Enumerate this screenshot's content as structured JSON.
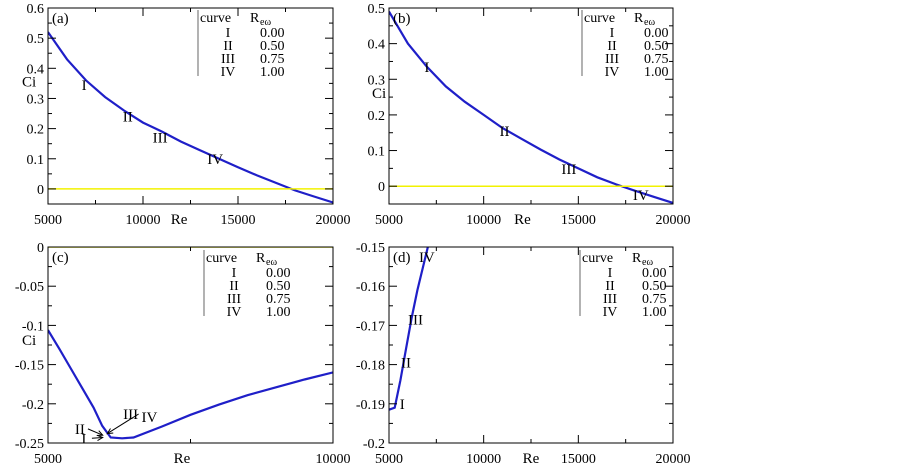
{
  "colors": {
    "curve": "#1f1fc8",
    "zero_line": "#f2f200",
    "frame": "#000000"
  },
  "chart_data": [
    {
      "type": "line",
      "panel": "(a)",
      "xlabel": "Re",
      "ylabel": "Ci",
      "xlim": [
        5000,
        20000
      ],
      "ylim": [
        -0.05,
        0.6
      ],
      "xticks": [
        5000,
        10000,
        15000,
        20000
      ],
      "yticks": [
        0,
        0.1,
        0.2,
        0.3,
        0.4,
        0.5,
        0.6
      ],
      "xtick_labels": [
        "5000",
        "10000",
        "15000",
        "20000"
      ],
      "ytick_labels": [
        "0",
        "0.1",
        "0.2",
        "0.3",
        "0.4",
        "0.5",
        "0.6"
      ],
      "series": [
        {
          "role": "curve",
          "x": [
            5000,
            6000,
            7000,
            8000,
            9000,
            10000,
            11000,
            12000,
            13000,
            14000,
            15000,
            16000,
            17000,
            18000,
            19000,
            20000
          ],
          "y": [
            0.52,
            0.43,
            0.36,
            0.305,
            0.26,
            0.22,
            0.19,
            0.157,
            0.128,
            0.1,
            0.072,
            0.045,
            0.02,
            -0.005,
            -0.025,
            -0.045
          ]
        },
        {
          "role": "zero",
          "x": [
            5000,
            20000
          ],
          "y": [
            0,
            0
          ]
        }
      ],
      "annotations": [
        {
          "text": "I",
          "x": 6900,
          "y": 0.345
        },
        {
          "text": "II",
          "x": 9200,
          "y": 0.24
        },
        {
          "text": "III",
          "x": 10900,
          "y": 0.17
        },
        {
          "text": "IV",
          "x": 13800,
          "y": 0.1
        }
      ],
      "legend": {
        "position": "top-right",
        "header": [
          "curve",
          "R",
          "eω"
        ],
        "rows": [
          [
            "I",
            "0.00"
          ],
          [
            "II",
            "0.50"
          ],
          [
            "III",
            "0.75"
          ],
          [
            "IV",
            "1.00"
          ]
        ]
      }
    },
    {
      "type": "line",
      "panel": "(b)",
      "xlabel": "Re",
      "ylabel": "Ci",
      "xlim": [
        5000,
        20000
      ],
      "ylim": [
        -0.05,
        0.5
      ],
      "xticks": [
        5000,
        10000,
        15000,
        20000
      ],
      "yticks": [
        0,
        0.1,
        0.2,
        0.3,
        0.4,
        0.5
      ],
      "xtick_labels": [
        "5000",
        "10000",
        "15000",
        "20000"
      ],
      "ytick_labels": [
        "0",
        "0.1",
        "0.2",
        "0.3",
        "0.4",
        "0.5"
      ],
      "series": [
        {
          "role": "curve",
          "x": [
            5000,
            6000,
            7000,
            8000,
            9000,
            10000,
            11000,
            12000,
            13000,
            14000,
            15000,
            16000,
            17000,
            18000,
            19000,
            20000
          ],
          "y": [
            0.49,
            0.4,
            0.335,
            0.28,
            0.237,
            0.2,
            0.163,
            0.133,
            0.103,
            0.075,
            0.05,
            0.025,
            0.005,
            -0.013,
            -0.03,
            -0.047
          ]
        },
        {
          "role": "zero",
          "x": [
            5000,
            20000
          ],
          "y": [
            0,
            0
          ]
        }
      ],
      "annotations": [
        {
          "text": "I",
          "x": 7000,
          "y": 0.335
        },
        {
          "text": "II",
          "x": 11100,
          "y": 0.155
        },
        {
          "text": "III",
          "x": 14500,
          "y": 0.048
        },
        {
          "text": "IV",
          "x": 18300,
          "y": -0.025
        }
      ],
      "legend": {
        "position": "top-right",
        "header": [
          "curve",
          "R",
          "eω"
        ],
        "rows": [
          [
            "I",
            "0.00"
          ],
          [
            "II",
            "0.50"
          ],
          [
            "III",
            "0.75"
          ],
          [
            "IV",
            "1.00"
          ]
        ]
      }
    },
    {
      "type": "line",
      "panel": "(c)",
      "xlabel": "Re",
      "ylabel": "Ci",
      "xlim": [
        5000,
        10000
      ],
      "ylim": [
        -0.25,
        0
      ],
      "xticks": [
        5000,
        10000
      ],
      "yticks": [
        -0.25,
        -0.2,
        -0.15,
        -0.1,
        -0.05,
        0
      ],
      "xtick_labels": [
        "5000",
        "10000"
      ],
      "ytick_labels": [
        "-0.25",
        "-0.2",
        "-0.15",
        "-0.1",
        "-0.05",
        "0"
      ],
      "series": [
        {
          "role": "curve",
          "x": [
            5000,
            5200,
            5400,
            5600,
            5800,
            5950,
            6100,
            6300,
            6500,
            7000,
            7500,
            8000,
            8500,
            9000,
            9500,
            10000
          ],
          "y": [
            -0.106,
            -0.13,
            -0.155,
            -0.18,
            -0.205,
            -0.228,
            -0.243,
            -0.244,
            -0.243,
            -0.229,
            -0.214,
            -0.201,
            -0.189,
            -0.179,
            -0.169,
            -0.16
          ]
        },
        {
          "role": "zero",
          "x": [
            5000,
            10000
          ],
          "y": [
            0,
            0
          ]
        }
      ],
      "annotations": [
        {
          "text": "I",
          "x": 5630,
          "y": -0.244,
          "arrow_to": [
            5960,
            -0.243
          ]
        },
        {
          "text": "II",
          "x": 5560,
          "y": -0.232,
          "arrow_to": [
            5960,
            -0.24
          ]
        },
        {
          "text": "III",
          "x": 6450,
          "y": -0.213,
          "arrow_to": [
            6040,
            -0.238
          ]
        },
        {
          "text": "IV",
          "x": 6780,
          "y": -0.217
        }
      ],
      "legend": {
        "position": "top-right",
        "header": [
          "curve",
          "R",
          "eω"
        ],
        "rows": [
          [
            "I",
            "0.00"
          ],
          [
            "II",
            "0.50"
          ],
          [
            "III",
            "0.75"
          ],
          [
            "IV",
            "1.00"
          ]
        ]
      }
    },
    {
      "type": "line",
      "panel": "(d)",
      "xlabel": "Re",
      "ylabel": "",
      "xlim": [
        5000,
        20000
      ],
      "ylim": [
        -0.2,
        -0.15
      ],
      "xticks": [
        5000,
        10000,
        15000,
        20000
      ],
      "yticks": [
        -0.2,
        -0.19,
        -0.18,
        -0.17,
        -0.16,
        -0.15
      ],
      "xtick_labels": [
        "5000",
        "10000",
        "15000",
        "20000"
      ],
      "ytick_labels": [
        "-0.2",
        "-0.19",
        "-0.18",
        "-0.17",
        "-0.16",
        "-0.15"
      ],
      "series": [
        {
          "role": "curve",
          "x": [
            5000,
            5300,
            5600,
            5900,
            6200,
            6500,
            6800,
            7100
          ],
          "y": [
            -0.1915,
            -0.191,
            -0.184,
            -0.176,
            -0.168,
            -0.161,
            -0.155,
            -0.149
          ]
        }
      ],
      "annotations": [
        {
          "text": "I",
          "x": 5700,
          "y": -0.19
        },
        {
          "text": "II",
          "x": 5900,
          "y": -0.1795
        },
        {
          "text": "III",
          "x": 6400,
          "y": -0.1685
        },
        {
          "text": "IV",
          "x": 7000,
          "y": -0.1525
        }
      ],
      "legend": {
        "position": "top-right",
        "header": [
          "curve",
          "R",
          "eω"
        ],
        "rows": [
          [
            "I",
            "0.00"
          ],
          [
            "II",
            "0.50"
          ],
          [
            "III",
            "0.75"
          ],
          [
            "IV",
            "1.00"
          ]
        ]
      }
    }
  ]
}
